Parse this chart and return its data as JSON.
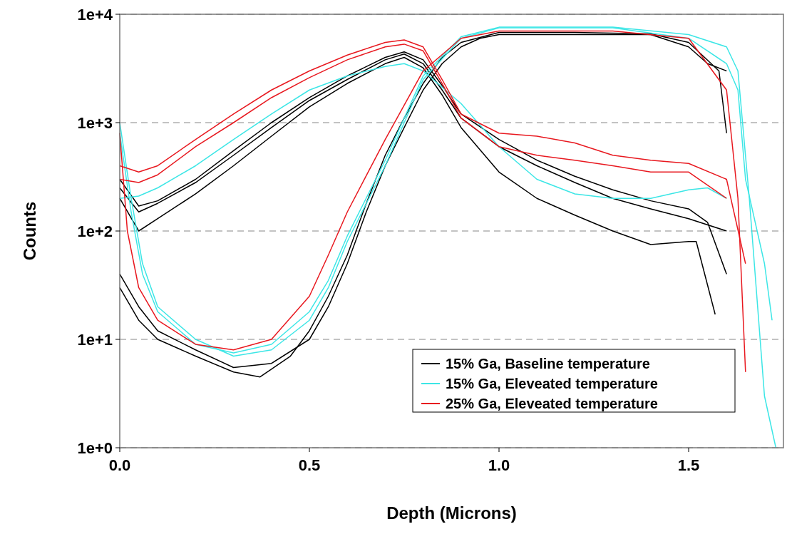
{
  "chart_data": {
    "type": "line",
    "xlabel": "Depth (Microns)",
    "ylabel": "Counts",
    "log": "y",
    "grid": "y",
    "legend": "bottom right",
    "line_style": "solid",
    "marker": "none",
    "xlim": [
      0,
      1.75
    ],
    "xticks": [
      {
        "value": 0,
        "label": "0.0"
      },
      {
        "value": 0.5,
        "label": "0.5"
      },
      {
        "value": 1,
        "label": "1.0"
      },
      {
        "value": 1.5,
        "label": "1.5"
      }
    ],
    "ylim": [
      1,
      10000
    ],
    "yticks": [
      {
        "value": 1,
        "label": "1e+0"
      },
      {
        "value": 10,
        "label": "1e+1"
      },
      {
        "value": 100,
        "label": "1e+2"
      },
      {
        "value": 1000,
        "label": "1e+3"
      },
      {
        "value": 10000,
        "label": "1e+4"
      }
    ],
    "series": [
      {
        "name": "15% Ga, Baseline temperature",
        "color": "#000000",
        "x": [
          0,
          0.05,
          0.1,
          0.2,
          0.3,
          0.4,
          0.5,
          0.6,
          0.7,
          0.75,
          0.8,
          0.85,
          0.9,
          1.0,
          1.1,
          1.2,
          1.3,
          1.4,
          1.5,
          1.6
        ],
        "values": [
          250,
          150,
          180,
          280,
          500,
          900,
          1600,
          2500,
          3800,
          4300,
          3500,
          2000,
          1100,
          600,
          400,
          280,
          200,
          160,
          130,
          100
        ]
      },
      {
        "color": "#000000",
        "x": [
          0,
          0.05,
          0.1,
          0.2,
          0.3,
          0.4,
          0.5,
          0.6,
          0.7,
          0.75,
          0.8,
          0.85,
          0.9,
          1.0,
          1.1,
          1.2,
          1.3,
          1.4,
          1.5,
          1.52,
          1.57
        ],
        "values": [
          200,
          100,
          130,
          220,
          400,
          750,
          1400,
          2300,
          3500,
          4000,
          3200,
          1800,
          900,
          350,
          200,
          140,
          100,
          75,
          80,
          80,
          17
        ]
      },
      {
        "color": "#000000",
        "x": [
          0,
          0.05,
          0.1,
          0.2,
          0.3,
          0.4,
          0.5,
          0.6,
          0.7,
          0.75,
          0.8,
          0.85,
          0.9,
          1.0,
          1.1,
          1.2,
          1.3,
          1.4,
          1.5,
          1.55,
          1.6
        ],
        "values": [
          300,
          170,
          190,
          300,
          550,
          1000,
          1700,
          2700,
          4000,
          4500,
          3800,
          2200,
          1200,
          700,
          450,
          320,
          240,
          190,
          160,
          120,
          40
        ]
      },
      {
        "color": "#000000",
        "x": [
          0,
          0.05,
          0.1,
          0.2,
          0.3,
          0.4,
          0.5,
          0.55,
          0.6,
          0.65,
          0.7,
          0.75,
          0.8,
          0.85,
          0.9,
          0.95,
          1.0,
          1.2,
          1.4,
          1.5,
          1.55,
          1.6
        ],
        "values": [
          40,
          20,
          12,
          8,
          5.5,
          6,
          10,
          20,
          50,
          150,
          400,
          900,
          2000,
          3500,
          5000,
          6000,
          6500,
          6500,
          6500,
          5000,
          3500,
          3000
        ]
      },
      {
        "color": "#000000",
        "x": [
          0,
          0.05,
          0.1,
          0.2,
          0.3,
          0.37,
          0.45,
          0.5,
          0.55,
          0.6,
          0.65,
          0.7,
          0.75,
          0.8,
          0.85,
          0.9,
          1.0,
          1.2,
          1.4,
          1.5,
          1.58,
          1.6
        ],
        "values": [
          30,
          15,
          10,
          7,
          5,
          4.5,
          7,
          12,
          25,
          60,
          180,
          500,
          1100,
          2300,
          4000,
          5500,
          6800,
          6800,
          6600,
          5500,
          3000,
          800
        ]
      },
      {
        "name": "15% Ga, Eleveated temperature",
        "color": "#3ce6e6",
        "x": [
          0,
          0.05,
          0.1,
          0.2,
          0.3,
          0.4,
          0.5,
          0.6,
          0.7,
          0.75,
          0.8,
          0.9,
          1.0,
          1.1,
          1.2,
          1.3,
          1.4,
          1.5,
          1.55,
          1.6
        ],
        "values": [
          200,
          210,
          250,
          400,
          700,
          1200,
          2000,
          2700,
          3300,
          3500,
          3000,
          1500,
          600,
          300,
          220,
          200,
          200,
          240,
          250,
          200
        ]
      },
      {
        "color": "#3ce6e6",
        "x": [
          0,
          0.03,
          0.06,
          0.1,
          0.2,
          0.3,
          0.4,
          0.5,
          0.55,
          0.6,
          0.7,
          0.8,
          0.9,
          1.0,
          1.3,
          1.5,
          1.6,
          1.63,
          1.65,
          1.7,
          1.72
        ],
        "values": [
          1000,
          200,
          50,
          20,
          10,
          7,
          8,
          15,
          30,
          80,
          400,
          2500,
          6000,
          7500,
          7500,
          6000,
          3500,
          2000,
          300,
          50,
          15
        ]
      },
      {
        "color": "#3ce6e6",
        "x": [
          0,
          0.03,
          0.06,
          0.1,
          0.2,
          0.3,
          0.4,
          0.5,
          0.55,
          0.6,
          0.7,
          0.8,
          0.9,
          1.0,
          1.3,
          1.5,
          1.6,
          1.63,
          1.66,
          1.7,
          1.73
        ],
        "values": [
          800,
          150,
          40,
          18,
          9,
          7.5,
          9,
          18,
          35,
          90,
          450,
          2700,
          6200,
          7600,
          7600,
          6500,
          5000,
          3000,
          200,
          3,
          1
        ]
      },
      {
        "name": "25% Ga, Eleveated temperature",
        "color": "#e8181f",
        "x": [
          0,
          0.05,
          0.1,
          0.2,
          0.3,
          0.4,
          0.5,
          0.6,
          0.7,
          0.75,
          0.8,
          0.85,
          0.9,
          1.0,
          1.1,
          1.2,
          1.3,
          1.4,
          1.5,
          1.6,
          1.65
        ],
        "values": [
          400,
          350,
          400,
          700,
          1200,
          2000,
          3000,
          4200,
          5500,
          5800,
          5000,
          2500,
          1200,
          800,
          750,
          650,
          500,
          450,
          420,
          300,
          50
        ]
      },
      {
        "color": "#e8181f",
        "x": [
          0,
          0.05,
          0.1,
          0.2,
          0.3,
          0.4,
          0.5,
          0.6,
          0.7,
          0.75,
          0.8,
          0.85,
          0.9,
          1.0,
          1.1,
          1.2,
          1.3,
          1.4,
          1.5,
          1.6
        ],
        "values": [
          300,
          280,
          330,
          600,
          1000,
          1700,
          2600,
          3800,
          5000,
          5300,
          4600,
          2300,
          1100,
          600,
          500,
          450,
          400,
          350,
          350,
          200
        ]
      },
      {
        "color": "#e8181f",
        "x": [
          0,
          0.02,
          0.05,
          0.1,
          0.2,
          0.3,
          0.4,
          0.5,
          0.55,
          0.6,
          0.7,
          0.8,
          0.9,
          1.0,
          1.3,
          1.5,
          1.6,
          1.63,
          1.65
        ],
        "values": [
          800,
          100,
          30,
          15,
          9,
          8,
          10,
          25,
          60,
          150,
          700,
          3000,
          6000,
          7000,
          7000,
          6000,
          2000,
          200,
          5
        ]
      }
    ]
  }
}
